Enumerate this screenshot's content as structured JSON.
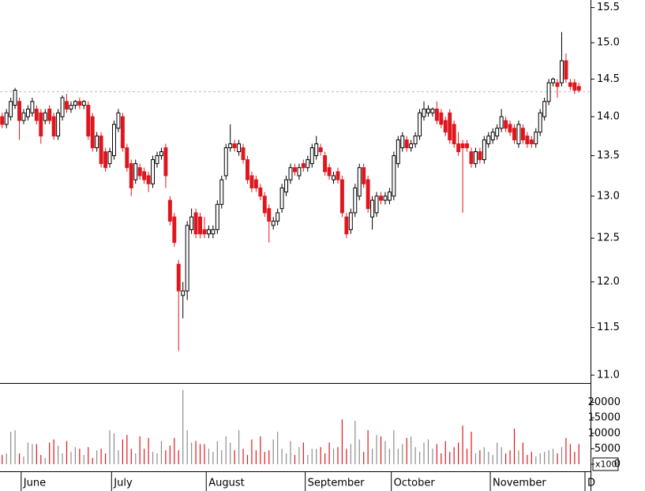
{
  "chart_data": {
    "type": "candlestick",
    "up_color": "#ffffff",
    "down_color": "#e0161e",
    "outline_color": "#000000",
    "volume_up_color": "#8c8c8c",
    "volume_down_color": "#e0161e",
    "price_axis": {
      "log_scale": true,
      "ylim": [
        10.92,
        15.61
      ],
      "yticks": [
        {
          "value": 11,
          "label": "11.0"
        },
        11.5,
        {
          "value": 12,
          "label": "12.0"
        },
        12.5,
        {
          "value": 13,
          "label": "13.0"
        },
        13.5,
        {
          "value": 14,
          "label": "14.0"
        },
        14.5,
        {
          "value": 15,
          "label": "15.0"
        },
        15.5
      ],
      "reference_line": 14.33
    },
    "volume_axis": {
      "ylim": [
        -2300,
        26000
      ],
      "yticks": [
        0,
        5000,
        10000,
        15000,
        20000
      ],
      "unit_label": "x100"
    },
    "months": [
      {
        "name": null,
        "candles": [
          [
            14.0,
            14.05,
            13.85,
            13.9,
            3000
          ],
          [
            13.9,
            14.1,
            13.85,
            14.05,
            3500
          ],
          [
            14.0,
            14.25,
            13.95,
            14.2,
            10500
          ],
          [
            14.15,
            14.38,
            14.1,
            14.35,
            11000
          ]
        ]
      },
      {
        "name": "June",
        "candles": [
          [
            14.2,
            14.25,
            13.7,
            13.95,
            3500
          ],
          [
            13.95,
            14.1,
            13.9,
            14.05,
            2500
          ],
          [
            14.0,
            14.15,
            13.95,
            14.1,
            7000
          ],
          [
            14.05,
            14.25,
            14.0,
            14.2,
            6500
          ],
          [
            14.1,
            14.15,
            13.9,
            13.95,
            6500
          ],
          [
            14.05,
            14.1,
            13.65,
            13.75,
            3000
          ],
          [
            13.95,
            14.1,
            13.9,
            14.05,
            2000
          ],
          [
            14.1,
            14.15,
            13.9,
            13.95,
            7000
          ],
          [
            14.0,
            14.05,
            13.7,
            13.75,
            8000
          ],
          [
            13.75,
            14.1,
            13.7,
            14.05,
            6000
          ],
          [
            14.0,
            14.28,
            13.95,
            14.25,
            3500
          ],
          [
            14.2,
            14.3,
            14.05,
            14.1,
            7500
          ],
          [
            14.1,
            14.2,
            14.05,
            14.15,
            4000
          ],
          [
            14.15,
            14.22,
            14.1,
            14.2,
            5500
          ],
          [
            14.2,
            14.25,
            14.1,
            14.15,
            5000
          ],
          [
            14.15,
            14.22,
            14.1,
            14.2,
            3000
          ],
          [
            14.15,
            14.2,
            13.7,
            13.75,
            5500
          ],
          [
            14.0,
            14.05,
            13.55,
            13.6,
            2000
          ],
          [
            13.6,
            13.8,
            13.55,
            13.75,
            4500
          ],
          [
            13.75,
            13.8,
            13.35,
            13.4,
            5000
          ],
          [
            13.55,
            13.6,
            13.3,
            13.35,
            3500
          ]
        ]
      },
      {
        "name": "July",
        "candles": [
          [
            13.4,
            13.6,
            13.35,
            13.55,
            11000
          ],
          [
            13.5,
            13.95,
            13.45,
            13.9,
            10000
          ],
          [
            13.85,
            14.1,
            13.8,
            14.05,
            4500
          ],
          [
            14.0,
            14.05,
            13.55,
            13.6,
            8000
          ],
          [
            13.6,
            13.65,
            13.3,
            13.35,
            9500
          ],
          [
            13.4,
            13.45,
            13.0,
            13.1,
            5000
          ],
          [
            13.2,
            13.45,
            13.15,
            13.4,
            3500
          ],
          [
            13.35,
            13.4,
            13.2,
            13.25,
            9000
          ],
          [
            13.3,
            13.35,
            13.15,
            13.2,
            5000
          ],
          [
            13.25,
            13.3,
            13.05,
            13.15,
            8500
          ],
          [
            13.15,
            13.5,
            13.1,
            13.45,
            4000
          ],
          [
            13.4,
            13.55,
            13.35,
            13.5,
            3500
          ],
          [
            13.5,
            13.6,
            13.45,
            13.55,
            7500
          ],
          [
            13.6,
            13.65,
            13.1,
            13.25,
            4500
          ],
          [
            12.95,
            13.0,
            12.65,
            12.7,
            6000
          ],
          [
            12.75,
            12.8,
            12.4,
            12.45,
            8500
          ],
          [
            12.2,
            12.25,
            11.25,
            11.9,
            4500
          ],
          [
            11.85,
            12.0,
            11.6,
            11.9,
            24000
          ],
          [
            11.9,
            12.7,
            11.8,
            12.65,
            11000
          ],
          [
            12.6,
            12.85,
            12.55,
            12.75,
            7000
          ],
          [
            12.8,
            12.85,
            12.5,
            12.55,
            7500
          ],
          [
            12.75,
            12.8,
            12.5,
            12.55,
            6500
          ]
        ]
      },
      {
        "name": "August",
        "candles": [
          [
            12.6,
            12.75,
            12.5,
            12.55,
            6500
          ],
          [
            12.55,
            12.65,
            12.5,
            12.6,
            5000
          ],
          [
            12.55,
            12.65,
            12.5,
            12.6,
            4000
          ],
          [
            12.6,
            12.95,
            12.55,
            12.9,
            7500
          ],
          [
            12.9,
            13.25,
            12.85,
            13.2,
            4500
          ],
          [
            13.25,
            13.65,
            13.2,
            13.6,
            9000
          ],
          [
            13.6,
            13.9,
            13.55,
            13.65,
            7000
          ],
          [
            13.65,
            13.7,
            13.55,
            13.6,
            4500
          ],
          [
            13.55,
            13.7,
            13.5,
            13.65,
            11000
          ],
          [
            13.6,
            13.65,
            13.4,
            13.45,
            5000
          ],
          [
            13.45,
            13.5,
            13.15,
            13.2,
            3000
          ],
          [
            13.25,
            13.3,
            13.05,
            13.1,
            8000
          ],
          [
            13.2,
            13.25,
            13.05,
            13.1,
            4500
          ],
          [
            13.1,
            13.15,
            12.95,
            13.0,
            9000
          ],
          [
            13.0,
            13.05,
            12.75,
            12.8,
            4000
          ],
          [
            12.85,
            12.9,
            12.45,
            12.7,
            4500
          ],
          [
            12.65,
            12.75,
            12.6,
            12.7,
            8000
          ],
          [
            12.7,
            12.85,
            12.65,
            12.8,
            10500
          ],
          [
            12.85,
            13.15,
            12.8,
            13.1,
            5000
          ],
          [
            13.05,
            13.25,
            13.0,
            13.2,
            3500
          ],
          [
            13.2,
            13.4,
            13.15,
            13.35,
            7500
          ],
          [
            13.35,
            13.4,
            13.25,
            13.3,
            3000
          ],
          [
            13.25,
            13.4,
            13.2,
            13.35,
            5500
          ]
        ]
      },
      {
        "name": "September",
        "candles": [
          [
            13.4,
            13.45,
            13.3,
            13.35,
            7000
          ],
          [
            13.35,
            13.5,
            13.3,
            13.45,
            3000
          ],
          [
            13.4,
            13.65,
            13.35,
            13.6,
            5000
          ],
          [
            13.5,
            13.75,
            13.45,
            13.65,
            5000
          ],
          [
            13.6,
            13.65,
            13.5,
            13.55,
            5500
          ],
          [
            13.5,
            13.55,
            13.25,
            13.3,
            3500
          ],
          [
            13.35,
            13.4,
            13.2,
            13.25,
            7000
          ],
          [
            13.2,
            13.3,
            13.15,
            13.25,
            5000
          ],
          [
            13.3,
            13.35,
            13.15,
            13.2,
            5500
          ],
          [
            13.2,
            13.25,
            12.75,
            12.8,
            14500
          ],
          [
            12.75,
            12.8,
            12.5,
            12.55,
            5000
          ],
          [
            12.6,
            12.85,
            12.55,
            12.8,
            6500
          ],
          [
            12.8,
            13.15,
            12.75,
            13.1,
            14000
          ],
          [
            13.0,
            13.4,
            12.95,
            13.35,
            8000
          ],
          [
            13.35,
            13.4,
            13.1,
            13.15,
            4000
          ],
          [
            13.2,
            13.25,
            12.8,
            12.85,
            11000
          ],
          [
            12.75,
            13.0,
            12.6,
            12.95,
            5000
          ],
          [
            12.8,
            13.05,
            12.75,
            13.0,
            9500
          ],
          [
            13.0,
            13.05,
            12.9,
            12.95,
            9000
          ],
          [
            12.95,
            13.05,
            12.9,
            13.0,
            7500
          ]
        ]
      },
      {
        "name": "October",
        "candles": [
          [
            12.95,
            13.1,
            12.9,
            13.05,
            5000
          ],
          [
            13.0,
            13.55,
            12.95,
            13.5,
            11000
          ],
          [
            13.4,
            13.75,
            13.35,
            13.7,
            5000
          ],
          [
            13.6,
            13.8,
            13.55,
            13.75,
            6500
          ],
          [
            13.7,
            13.75,
            13.55,
            13.6,
            8500
          ],
          [
            13.6,
            13.7,
            13.55,
            13.65,
            9000
          ],
          [
            13.65,
            13.8,
            13.6,
            13.75,
            5500
          ],
          [
            13.75,
            14.1,
            13.7,
            14.05,
            4000
          ],
          [
            14.0,
            14.2,
            13.95,
            14.1,
            7000
          ],
          [
            14.05,
            14.15,
            14.0,
            14.1,
            8000
          ],
          [
            14.05,
            14.12,
            14.0,
            14.1,
            5000
          ],
          [
            14.1,
            14.2,
            13.9,
            13.95,
            6500
          ],
          [
            14.05,
            14.1,
            13.85,
            13.9,
            3500
          ],
          [
            13.95,
            14.0,
            13.75,
            13.8,
            7500
          ],
          [
            14.05,
            14.1,
            13.65,
            13.7,
            4000
          ],
          [
            13.9,
            13.95,
            13.6,
            13.65,
            5500
          ],
          [
            13.65,
            13.8,
            13.5,
            13.55,
            7000
          ],
          [
            13.65,
            13.7,
            12.8,
            13.6,
            12500
          ],
          [
            13.65,
            13.7,
            13.55,
            13.6,
            5000
          ],
          [
            13.55,
            13.6,
            13.35,
            13.4,
            10500
          ],
          [
            13.4,
            13.6,
            13.35,
            13.55,
            3500
          ],
          [
            13.55,
            13.6,
            13.4,
            13.45,
            4500
          ],
          [
            13.45,
            13.75,
            13.4,
            13.7,
            5500
          ]
        ]
      },
      {
        "name": "November",
        "candles": [
          [
            13.65,
            13.8,
            13.6,
            13.75,
            4000
          ],
          [
            13.7,
            13.85,
            13.65,
            13.8,
            3000
          ],
          [
            13.75,
            13.9,
            13.7,
            13.85,
            7000
          ],
          [
            13.85,
            14.1,
            13.8,
            14.0,
            5500
          ],
          [
            13.95,
            14.0,
            13.8,
            13.85,
            3500
          ],
          [
            13.9,
            13.95,
            13.75,
            13.8,
            4500
          ],
          [
            13.85,
            13.9,
            13.65,
            13.7,
            11500
          ],
          [
            13.65,
            13.95,
            13.6,
            13.9,
            4500
          ],
          [
            13.85,
            13.9,
            13.65,
            13.7,
            7000
          ],
          [
            13.75,
            13.8,
            13.6,
            13.65,
            3000
          ],
          [
            13.7,
            13.75,
            13.6,
            13.65,
            4000
          ],
          [
            13.65,
            13.85,
            13.6,
            13.8,
            2500
          ],
          [
            13.8,
            14.1,
            13.75,
            14.05,
            3500
          ],
          [
            14.0,
            14.25,
            13.95,
            14.2,
            4000
          ],
          [
            14.2,
            14.5,
            14.15,
            14.45,
            4500
          ],
          [
            14.45,
            14.52,
            14.4,
            14.5,
            5000
          ],
          [
            14.45,
            14.5,
            14.25,
            14.4,
            3500
          ],
          [
            14.45,
            15.15,
            14.4,
            14.75,
            5500
          ],
          [
            14.75,
            14.85,
            14.45,
            14.5,
            8500
          ],
          [
            14.45,
            14.5,
            14.35,
            14.4,
            6500
          ],
          [
            14.45,
            14.5,
            14.3,
            14.35,
            4000
          ],
          [
            14.4,
            14.45,
            14.32,
            14.35,
            6500
          ]
        ]
      },
      {
        "name": "D",
        "candles": []
      }
    ]
  }
}
